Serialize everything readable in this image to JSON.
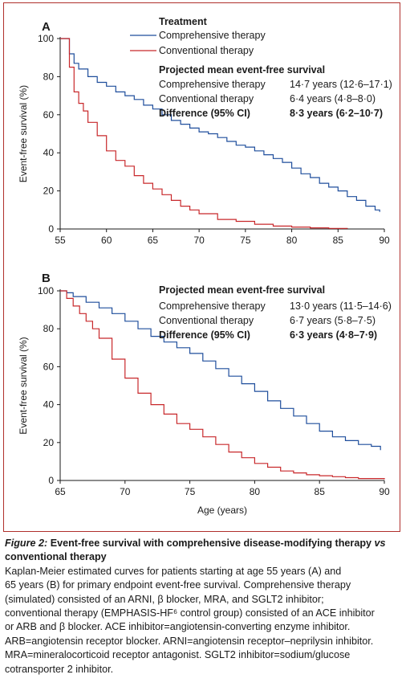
{
  "figure": {
    "title_prefix": "Figure 2: ",
    "title_main": "Event-free survival with comprehensive disease-modifying therapy ",
    "title_vs": "vs",
    "title_end": " conventional therapy",
    "caption_lines": [
      "Kaplan-Meier estimated curves for patients starting at age 55 years (A) and",
      "65 years (B) for primary endpoint event-free survival. Comprehensive therapy",
      "(simulated) consisted of an ARNI, β blocker, MRA, and SGLT2 inhibitor;",
      "conventional therapy (EMPHASIS-HF⁶ control group) consisted of an ACE inhibitor",
      "or ARB and β blocker. ACE inhibitor=angiotensin-converting enzyme inhibitor.",
      "ARB=angiotensin receptor blocker. ARNI=angiotensin receptor–neprilysin inhibitor.",
      "MRA=mineralocorticoid receptor antagonist. SGLT2 inhibitor=sodium/glucose",
      "cotransporter 2 inhibitor."
    ]
  },
  "colors": {
    "comprehensive": "#1f4e9c",
    "conventional": "#c8282b",
    "frame": "#b0302c"
  },
  "chart_data": [
    {
      "type": "line",
      "panel_label": "A",
      "legend_title": "Treatment",
      "ylabel": "Event-free survival (%)",
      "xlabel": "",
      "xlim": [
        55,
        90
      ],
      "ylim": [
        0,
        100
      ],
      "xticks": [
        "55",
        "60",
        "65",
        "70",
        "75",
        "80",
        "85",
        "90"
      ],
      "yticks": [
        "0",
        "20",
        "40",
        "60",
        "80",
        "100"
      ],
      "series": [
        {
          "name": "Comprehensive therapy",
          "x": [
            55,
            55.6,
            56,
            56.5,
            57,
            58,
            59,
            60,
            61,
            62,
            63,
            64,
            65,
            66,
            67,
            68,
            69,
            70,
            71,
            72,
            73,
            74,
            75,
            76,
            77,
            78,
            79,
            80,
            81,
            82,
            83,
            84,
            85,
            86,
            87,
            88,
            89,
            89.5
          ],
          "y": [
            100,
            100,
            92,
            87,
            84,
            80,
            77,
            75,
            72,
            70,
            68,
            65,
            63,
            60,
            57,
            55,
            53,
            51,
            50,
            48,
            46,
            44,
            43,
            41,
            39,
            37,
            35,
            32,
            29,
            27,
            24,
            22,
            20,
            17,
            15,
            12,
            10,
            9
          ]
        },
        {
          "name": "Conventional therapy",
          "x": [
            55,
            55.5,
            56,
            56.5,
            57,
            57.5,
            58,
            59,
            60,
            61,
            62,
            63,
            64,
            65,
            66,
            67,
            68,
            69,
            70,
            72,
            74,
            76,
            78,
            80,
            82,
            84,
            86
          ],
          "y": [
            100,
            100,
            85,
            72,
            66,
            62,
            56,
            49,
            41,
            36,
            33,
            28,
            24,
            21,
            18,
            15,
            12,
            10,
            8,
            5,
            4,
            2.5,
            1.5,
            1,
            0.6,
            0.3,
            0.2
          ]
        }
      ],
      "projected": {
        "heading": "Projected mean event-free survival",
        "rows": [
          {
            "label": "Comprehensive therapy",
            "value": "14·7 years (12·6–17·1)"
          },
          {
            "label": "Conventional therapy",
            "value": "6·4 years (4·8–8·0)"
          }
        ],
        "difference_label": "Difference (95% CI)",
        "difference_value": "8·3 years (6·2–10·7)"
      }
    },
    {
      "type": "line",
      "panel_label": "B",
      "ylabel": "Event-free survival (%)",
      "xlabel": "Age (years)",
      "xlim": [
        65,
        90
      ],
      "ylim": [
        0,
        100
      ],
      "xticks": [
        "65",
        "70",
        "75",
        "80",
        "85",
        "90"
      ],
      "yticks": [
        "0",
        "20",
        "40",
        "60",
        "80",
        "100"
      ],
      "series": [
        {
          "name": "Comprehensive therapy",
          "x": [
            65,
            65.5,
            66,
            67,
            68,
            69,
            70,
            71,
            72,
            73,
            74,
            75,
            76,
            77,
            78,
            79,
            80,
            81,
            82,
            83,
            84,
            85,
            86,
            87,
            88,
            89,
            89.7
          ],
          "y": [
            100,
            99,
            97,
            94,
            91,
            88,
            84,
            80,
            76,
            73,
            70,
            67,
            63,
            59,
            55,
            51,
            47,
            42,
            38,
            34,
            30,
            26,
            23,
            21,
            19,
            18,
            16
          ]
        },
        {
          "name": "Conventional therapy",
          "x": [
            65,
            65.5,
            66,
            66.5,
            67,
            67.5,
            68,
            69,
            70,
            71,
            72,
            73,
            74,
            75,
            76,
            77,
            78,
            79,
            80,
            81,
            82,
            83,
            84,
            85,
            86,
            87,
            88,
            89,
            90
          ],
          "y": [
            100,
            96,
            92,
            88,
            84,
            80,
            75,
            64,
            54,
            46,
            40,
            35,
            30,
            27,
            23,
            19,
            15,
            12,
            9,
            7,
            5,
            4,
            3,
            2.5,
            2,
            1.5,
            1,
            1,
            0.6
          ]
        }
      ],
      "projected": {
        "heading": "Projected mean event-free survival",
        "rows": [
          {
            "label": "Comprehensive therapy",
            "value": "13·0 years (11·5–14·6)"
          },
          {
            "label": "Conventional therapy",
            "value": "6·7 years (5·8–7·5)"
          }
        ],
        "difference_label": "Difference (95% CI)",
        "difference_value": "6·3 years (4·8–7·9)"
      }
    }
  ]
}
